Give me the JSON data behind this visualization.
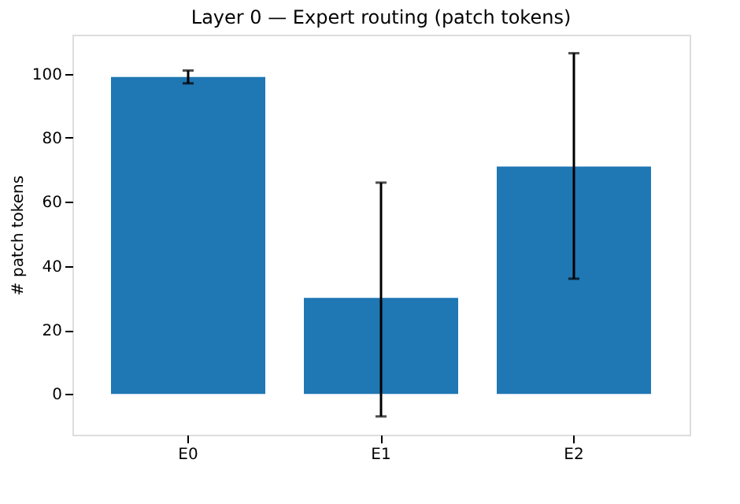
{
  "chart_data": {
    "type": "bar",
    "title": "Layer 0 — Expert routing (patch tokens)",
    "ylabel": "# patch tokens",
    "categories": [
      "E0",
      "E1",
      "E2"
    ],
    "values": [
      99,
      30,
      71
    ],
    "errors": [
      [
        97,
        101
      ],
      [
        -7,
        66
      ],
      [
        36,
        106.4
      ]
    ],
    "color": "#1f77b4",
    "ylim": [
      -12.7,
      112.2
    ],
    "yticks": [
      0,
      20,
      40,
      60,
      80,
      100
    ],
    "grid": false
  }
}
